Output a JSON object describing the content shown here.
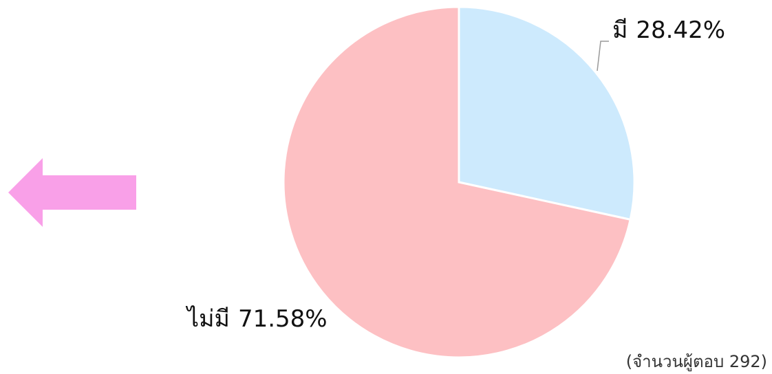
{
  "chart_data": {
    "type": "pie",
    "categories": [
      "มี",
      "ไม่มี"
    ],
    "values": [
      28.42,
      71.58
    ],
    "value_labels": [
      "28.42%",
      "71.58%"
    ],
    "colors": [
      "#cdeafd",
      "#fdc0c3"
    ],
    "annotation": "(จำนวนผู้ตอบ 292)"
  }
}
